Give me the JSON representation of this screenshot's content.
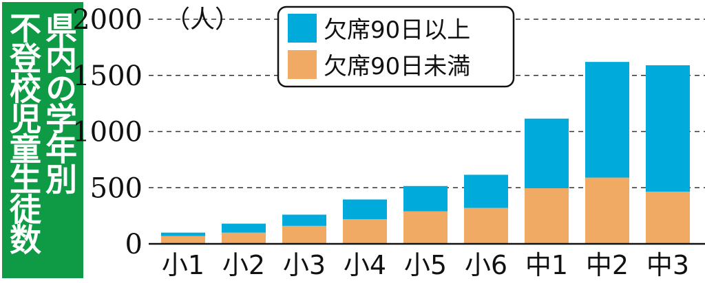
{
  "title": {
    "line1": "県内の学年別",
    "line2": "不登校児童生徒数"
  },
  "chart_data": {
    "type": "bar",
    "stacked": true,
    "unit": "（人）",
    "categories": [
      "小1",
      "小2",
      "小3",
      "小4",
      "小5",
      "小6",
      "中1",
      "中2",
      "中3"
    ],
    "series": [
      {
        "name": "欠席90日未満",
        "color": "#f0aa64",
        "values": [
          70,
          100,
          160,
          220,
          290,
          320,
          495,
          590,
          465
        ]
      },
      {
        "name": "欠席90日以上",
        "color": "#00aadb",
        "values": [
          30,
          80,
          100,
          175,
          225,
          295,
          620,
          1030,
          1125
        ]
      }
    ],
    "yticks": [
      0,
      500,
      1000,
      1500,
      2000
    ],
    "ylim": [
      0,
      2000
    ],
    "grid": true,
    "legend_position": "top"
  }
}
